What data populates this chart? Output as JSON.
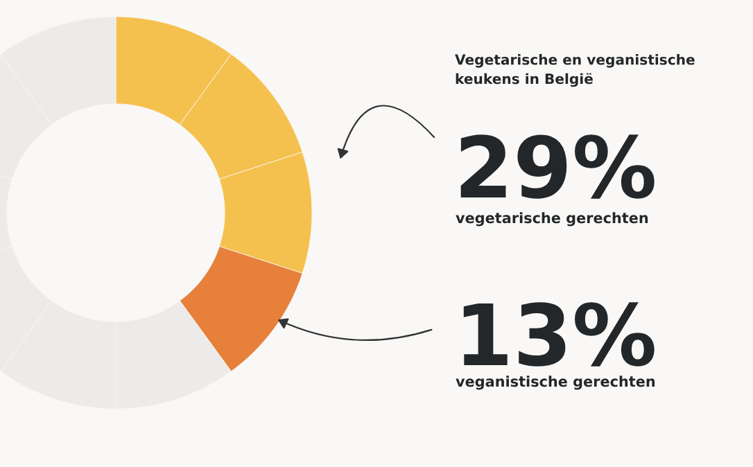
{
  "chart_data": {
    "type": "donut",
    "title": "Vegetarische en veganistische\nkeukens in België",
    "categories": [
      null,
      null,
      null,
      null,
      null,
      null,
      null,
      null,
      null,
      null
    ],
    "values": [
      10,
      10,
      10,
      10,
      10,
      10,
      10,
      10,
      10,
      10
    ],
    "colors": [
      "#f5c14e",
      "#f5c14e",
      "#f5c14e",
      "#e6803a",
      "#edebe9",
      "#edebe9",
      "#edebe9",
      "#edebe9",
      "#edebe9",
      "#edebe9"
    ],
    "annotations": [
      "29%",
      "vegetarische gerechten",
      "13%",
      "veganistische gerechten"
    ]
  }
}
